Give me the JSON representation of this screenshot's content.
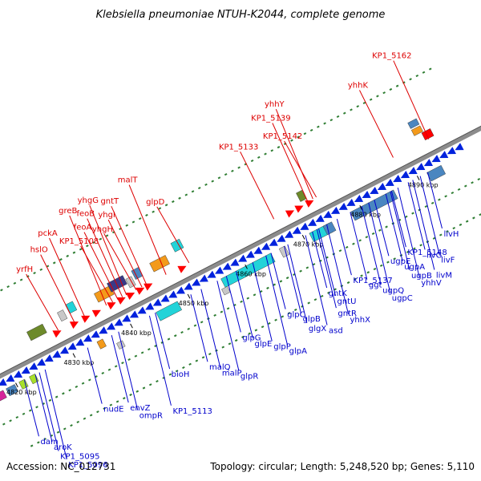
{
  "title": "Klebsiella pneumoniae NTUH-K2044, complete genome",
  "footer": {
    "accession": "Accession: NC_012731",
    "summary": "Topology: circular; Length: 5,248,520 bp; Genes: 5,110"
  },
  "colors": {
    "backbone": "#8c8c8c",
    "top_label": "#dd0000",
    "bottom_label": "#0000cc",
    "tick_mark": "#2e7d32",
    "forward_arrow": "#ff0000",
    "reverse_arrow": "#0022dd"
  },
  "ticks": [
    {
      "kbp": 4820,
      "label": "4820 kbp"
    },
    {
      "kbp": 4830,
      "label": "4830 kbp"
    },
    {
      "kbp": 4840,
      "label": "4840 kbp"
    },
    {
      "kbp": 4850,
      "label": "4850 kbp"
    },
    {
      "kbp": 4860,
      "label": "4860 kbp"
    },
    {
      "kbp": 4870,
      "label": "4870 kbp"
    },
    {
      "kbp": 4880,
      "label": "4880 kbp"
    },
    {
      "kbp": 4890,
      "label": "4890 kbp"
    }
  ],
  "top_labels": [
    {
      "text": "yrfH",
      "kbp": 4829.6
    },
    {
      "text": "hslO",
      "kbp": 4832.4
    },
    {
      "text": "pckA",
      "kbp": 4834.2
    },
    {
      "text": "greB",
      "kbp": 4838.0
    },
    {
      "text": "KP1_5108",
      "kbp": 4839.1
    },
    {
      "text": "feoA",
      "kbp": 4840.0
    },
    {
      "text": "feoB",
      "kbp": 4840.8
    },
    {
      "text": "yhgG",
      "kbp": 4841.5
    },
    {
      "text": "yhgH",
      "kbp": 4843.2
    },
    {
      "text": "yhgI",
      "kbp": 4844.2
    },
    {
      "text": "gntT",
      "kbp": 4845.0
    },
    {
      "text": "malT",
      "kbp": 4848.4
    },
    {
      "text": "glpD",
      "kbp": 4852.4
    },
    {
      "text": "KP1_5133",
      "kbp": 4867.2
    },
    {
      "text": "KP1_5139",
      "kbp": 4873.1
    },
    {
      "text": "yhhY",
      "kbp": 4874.0
    },
    {
      "text": "KP1_5142",
      "kbp": 4874.6
    },
    {
      "text": "yhhK",
      "kbp": 4888.0
    },
    {
      "text": "KP1_5162",
      "kbp": 4894.2
    }
  ],
  "bottom_labels": [
    {
      "text": "dam",
      "kbp": 4821.4
    },
    {
      "text": "aroK",
      "kbp": 4823.3
    },
    {
      "text": "KP1_5095",
      "kbp": 4824.0
    },
    {
      "text": "KP1_5096",
      "kbp": 4825.0
    },
    {
      "text": "nudE",
      "kbp": 4832.4
    },
    {
      "text": "envZ",
      "kbp": 4836.6
    },
    {
      "text": "ompR",
      "kbp": 4837.8
    },
    {
      "text": "KP1_5113",
      "kbp": 4843.2
    },
    {
      "text": "bioH",
      "kbp": 4844.2
    },
    {
      "text": "malQ",
      "kbp": 4850.4
    },
    {
      "text": "malP",
      "kbp": 4852.2
    },
    {
      "text": "glpR",
      "kbp": 4855.0
    },
    {
      "text": "glpG",
      "kbp": 4856.6
    },
    {
      "text": "glpE",
      "kbp": 4858.3
    },
    {
      "text": "glpP",
      "kbp": 4861.2
    },
    {
      "text": "glpA",
      "kbp": 4863.5
    },
    {
      "text": "glpC",
      "kbp": 4864.4
    },
    {
      "text": "glpB",
      "kbp": 4866.7
    },
    {
      "text": "glgX",
      "kbp": 4867.3
    },
    {
      "text": "asd",
      "kbp": 4870.4
    },
    {
      "text": "gntK",
      "kbp": 4871.6
    },
    {
      "text": "gntU",
      "kbp": 4872.7
    },
    {
      "text": "gntR",
      "kbp": 4872.4
    },
    {
      "text": "yhhX",
      "kbp": 4874.1
    },
    {
      "text": "KP1_5137",
      "kbp": 4875.9
    },
    {
      "text": "ggt",
      "kbp": 4878.2
    },
    {
      "text": "ugpQ",
      "kbp": 4880.2
    },
    {
      "text": "ugpC",
      "kbp": 4881.4
    },
    {
      "text": "ugpE",
      "kbp": 4882.4
    },
    {
      "text": "ugpA",
      "kbp": 4884.4
    },
    {
      "text": "ugpB",
      "kbp": 4885.2
    },
    {
      "text": "yhhV",
      "kbp": 4886.5
    },
    {
      "text": "KP1_5148",
      "kbp": 4885.4
    },
    {
      "text": "livG",
      "kbp": 4888.3
    },
    {
      "text": "livF",
      "kbp": 4890.4
    },
    {
      "text": "livM",
      "kbp": 4889.1
    },
    {
      "text": "livH",
      "kbp": 4891.7
    }
  ]
}
